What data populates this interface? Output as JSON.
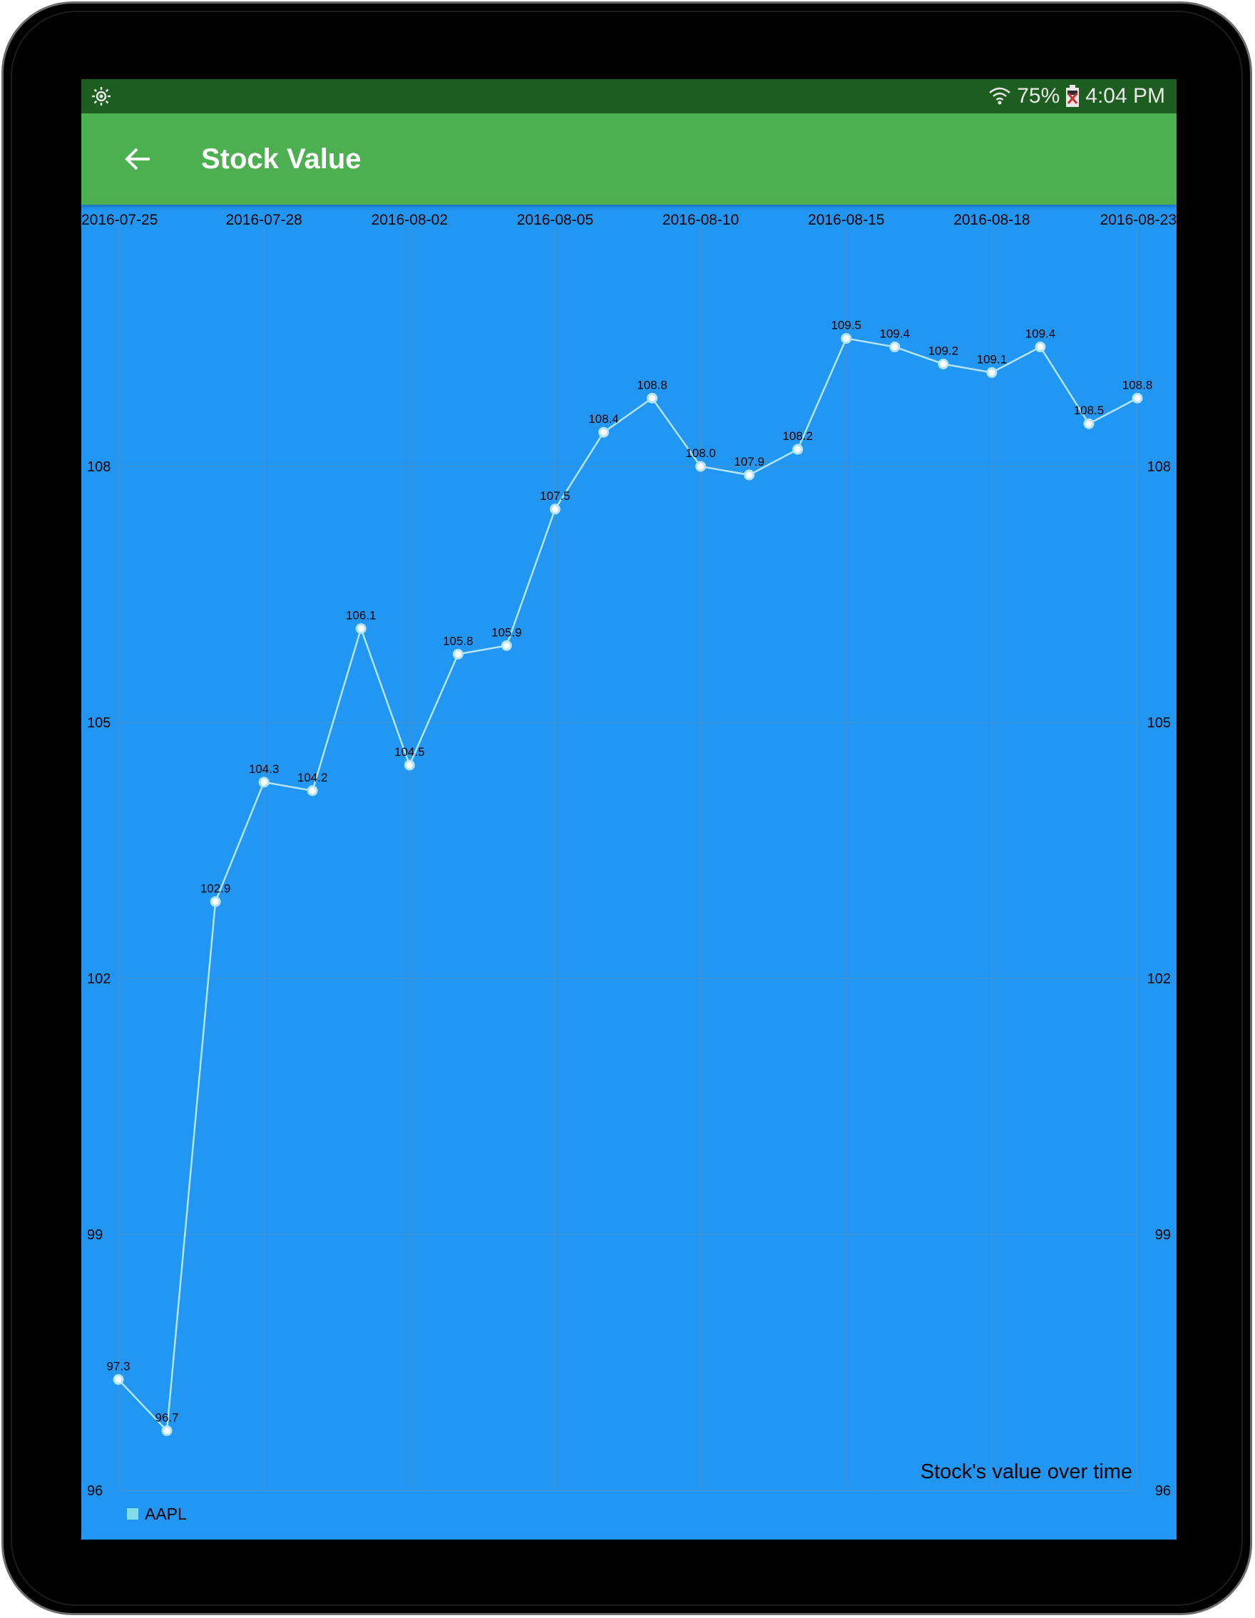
{
  "status_bar": {
    "battery": "75%",
    "time": "4:04 PM",
    "icons": [
      "brightness-icon",
      "wifi-icon",
      "battery-icon"
    ]
  },
  "app_bar": {
    "title": "Stock Value",
    "back_icon": "arrow-back-icon"
  },
  "colors": {
    "status_bar": "#1e5d20",
    "app_bar": "#4caf50",
    "chart_background": "#2196f3",
    "series_line": "#b3e5fc",
    "legend_swatch": "#80deea"
  },
  "chart_data": {
    "type": "line",
    "description": "Stock's value over time",
    "x_tick_labels": [
      "2016-07-25",
      "2016-07-28",
      "2016-08-02",
      "2016-08-05",
      "2016-08-10",
      "2016-08-15",
      "2016-08-18",
      "2016-08-23"
    ],
    "y_ticks": [
      96,
      99,
      102,
      105,
      108
    ],
    "ylim": [
      95.75,
      110.8
    ],
    "grid": true,
    "dual_y_axis": true,
    "legend_position": "bottom-left",
    "series": [
      {
        "name": "AAPL",
        "values": [
          97.3,
          96.7,
          102.9,
          104.3,
          104.2,
          106.1,
          104.5,
          105.8,
          105.9,
          107.5,
          108.4,
          108.8,
          108.0,
          107.9,
          108.2,
          109.5,
          109.4,
          109.2,
          109.1,
          109.4,
          108.5,
          108.8
        ],
        "point_labels": [
          "97.3",
          "96.7",
          "102.9",
          "104.3",
          "104.2",
          "106.1",
          "104.5",
          "105.8",
          "105.9",
          "107.5",
          "108.4",
          "108.8",
          "108.0",
          "107.9",
          "108.2",
          "109.5",
          "109.4",
          "109.2",
          "109.1",
          "109.4",
          "108.5",
          "108.8"
        ]
      }
    ]
  }
}
